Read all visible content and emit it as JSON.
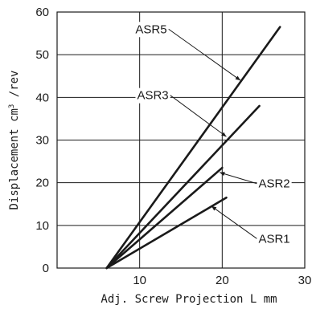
{
  "chart_data": {
    "type": "line",
    "xlabel": "Adj. Screw Projection  L mm",
    "ylabel_main": "Displacement cm",
    "ylabel_sup": "3",
    "ylabel_tail": " /rev",
    "xlim": [
      0,
      30
    ],
    "ylim": [
      0,
      60
    ],
    "x_ticks": [
      10,
      20,
      30
    ],
    "y_ticks": [
      0,
      10,
      20,
      30,
      40,
      50,
      60
    ],
    "grid": true,
    "series": [
      {
        "name": "ASR5",
        "x": [
          6,
          27
        ],
        "y": [
          0,
          56.5
        ]
      },
      {
        "name": "ASR3",
        "x": [
          6,
          24.5
        ],
        "y": [
          0,
          38
        ]
      },
      {
        "name": "ASR2",
        "x": [
          6,
          20
        ],
        "y": [
          0,
          23.5
        ]
      },
      {
        "name": "ASR1",
        "x": [
          6,
          20.5
        ],
        "y": [
          0,
          16.5
        ]
      }
    ],
    "annotations": [
      {
        "series": "ASR5",
        "text": "ASR5",
        "label_x": 13.5,
        "label_y": 56,
        "point_x": 22.2,
        "point_y": 44
      },
      {
        "series": "ASR3",
        "text": "ASR3",
        "label_x": 13.7,
        "label_y": 40.5,
        "point_x": 20.5,
        "point_y": 30.8
      },
      {
        "series": "ASR2",
        "text": "ASR2",
        "label_x": 24.2,
        "label_y": 19.8,
        "point_x": 19.7,
        "point_y": 22.4
      },
      {
        "series": "ASR1",
        "text": "ASR1",
        "label_x": 24.2,
        "label_y": 6.9,
        "point_x": 18.7,
        "point_y": 14.5
      }
    ]
  }
}
